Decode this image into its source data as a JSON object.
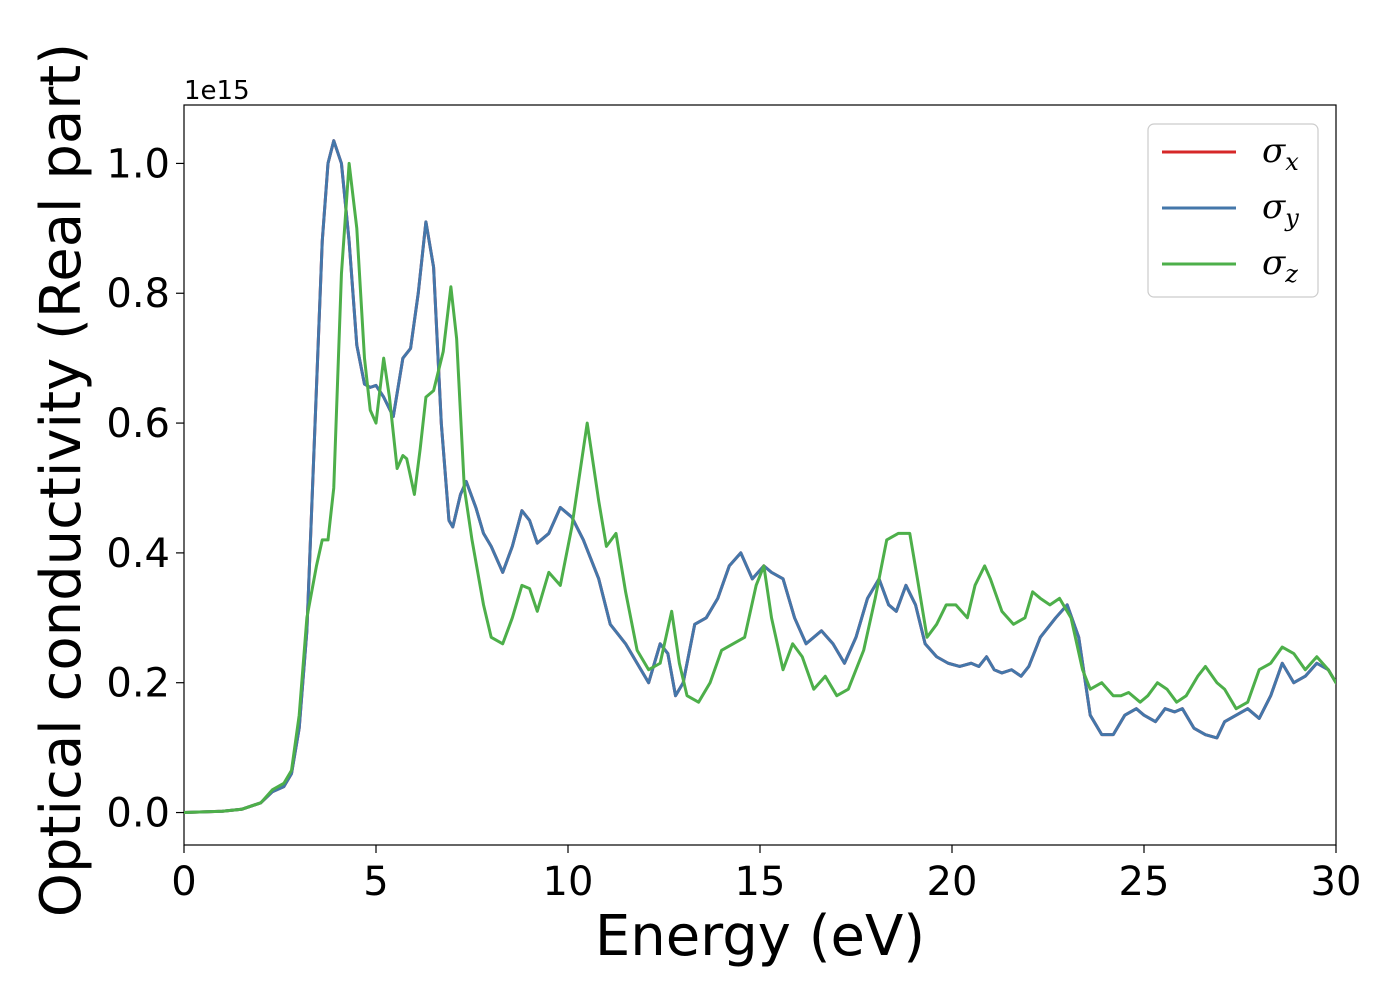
{
  "chart_data": {
    "type": "line",
    "xlabel": "Energy (eV)",
    "ylabel": "Optical conductivity (Real part)",
    "y_offset_label": "1e15",
    "xlim": [
      0,
      30
    ],
    "ylim": [
      -0.05,
      1.09
    ],
    "x_ticks": [
      0,
      5,
      10,
      15,
      20,
      25,
      30
    ],
    "y_ticks": [
      0.0,
      0.2,
      0.4,
      0.6,
      0.8,
      1.0
    ],
    "x_tick_labels": [
      "0",
      "5",
      "10",
      "15",
      "20",
      "25",
      "30"
    ],
    "y_tick_labels": [
      "0.0",
      "0.2",
      "0.4",
      "0.6",
      "0.8",
      "1.0"
    ],
    "grid": false,
    "legend_position": "top-right",
    "series": [
      {
        "name": "σx",
        "symbol": "σ",
        "subscript": "x",
        "color": "#d62728",
        "x": [
          0,
          1,
          1.5,
          2.0,
          2.3,
          2.6,
          2.8,
          3.0,
          3.2,
          3.4,
          3.6,
          3.75,
          3.9,
          4.1,
          4.3,
          4.5,
          4.7,
          4.85,
          5.0,
          5.2,
          5.45,
          5.7,
          5.9,
          6.1,
          6.3,
          6.5,
          6.7,
          6.9,
          7.0,
          7.2,
          7.35,
          7.6,
          7.8,
          8.0,
          8.3,
          8.55,
          8.8,
          9.0,
          9.2,
          9.5,
          9.8,
          10.1,
          10.4,
          10.8,
          11.1,
          11.5,
          11.8,
          12.1,
          12.4,
          12.6,
          12.8,
          13.0,
          13.3,
          13.6,
          13.9,
          14.2,
          14.5,
          14.8,
          15.1,
          15.3,
          15.6,
          15.9,
          16.2,
          16.6,
          16.9,
          17.2,
          17.5,
          17.8,
          18.1,
          18.35,
          18.55,
          18.8,
          19.05,
          19.3,
          19.6,
          19.9,
          20.2,
          20.5,
          20.7,
          20.9,
          21.1,
          21.3,
          21.55,
          21.8,
          22.0,
          22.3,
          22.7,
          23.0,
          23.3,
          23.6,
          23.9,
          24.2,
          24.5,
          24.8,
          25.0,
          25.3,
          25.55,
          25.8,
          26.0,
          26.3,
          26.6,
          26.9,
          27.1,
          27.4,
          27.7,
          28.0,
          28.3,
          28.6,
          28.9,
          29.2,
          29.5,
          29.8,
          30.0
        ],
        "values": [
          0,
          0.002,
          0.005,
          0.015,
          0.032,
          0.04,
          0.06,
          0.13,
          0.28,
          0.58,
          0.88,
          1.0,
          1.035,
          1.0,
          0.88,
          0.72,
          0.66,
          0.655,
          0.658,
          0.64,
          0.61,
          0.7,
          0.715,
          0.8,
          0.91,
          0.84,
          0.6,
          0.45,
          0.44,
          0.49,
          0.51,
          0.47,
          0.43,
          0.41,
          0.37,
          0.41,
          0.465,
          0.45,
          0.415,
          0.43,
          0.47,
          0.455,
          0.42,
          0.36,
          0.29,
          0.26,
          0.23,
          0.2,
          0.26,
          0.245,
          0.18,
          0.2,
          0.29,
          0.3,
          0.33,
          0.38,
          0.4,
          0.36,
          0.38,
          0.37,
          0.36,
          0.3,
          0.26,
          0.28,
          0.26,
          0.23,
          0.27,
          0.33,
          0.36,
          0.32,
          0.31,
          0.35,
          0.32,
          0.26,
          0.24,
          0.23,
          0.225,
          0.23,
          0.225,
          0.24,
          0.22,
          0.215,
          0.22,
          0.21,
          0.225,
          0.27,
          0.3,
          0.32,
          0.27,
          0.15,
          0.12,
          0.12,
          0.15,
          0.16,
          0.15,
          0.14,
          0.16,
          0.155,
          0.16,
          0.13,
          0.12,
          0.115,
          0.14,
          0.15,
          0.16,
          0.145,
          0.18,
          0.23,
          0.2,
          0.21,
          0.23,
          0.22,
          0.2
        ]
      },
      {
        "name": "σy",
        "symbol": "σ",
        "subscript": "y",
        "color": "#4477aa",
        "x": [
          0,
          1,
          1.5,
          2.0,
          2.3,
          2.6,
          2.8,
          3.0,
          3.2,
          3.4,
          3.6,
          3.75,
          3.9,
          4.1,
          4.3,
          4.5,
          4.7,
          4.85,
          5.0,
          5.2,
          5.45,
          5.7,
          5.9,
          6.1,
          6.3,
          6.5,
          6.7,
          6.9,
          7.0,
          7.2,
          7.35,
          7.6,
          7.8,
          8.0,
          8.3,
          8.55,
          8.8,
          9.0,
          9.2,
          9.5,
          9.8,
          10.1,
          10.4,
          10.8,
          11.1,
          11.5,
          11.8,
          12.1,
          12.4,
          12.6,
          12.8,
          13.0,
          13.3,
          13.6,
          13.9,
          14.2,
          14.5,
          14.8,
          15.1,
          15.3,
          15.6,
          15.9,
          16.2,
          16.6,
          16.9,
          17.2,
          17.5,
          17.8,
          18.1,
          18.35,
          18.55,
          18.8,
          19.05,
          19.3,
          19.6,
          19.9,
          20.2,
          20.5,
          20.7,
          20.9,
          21.1,
          21.3,
          21.55,
          21.8,
          22.0,
          22.3,
          22.7,
          23.0,
          23.3,
          23.6,
          23.9,
          24.2,
          24.5,
          24.8,
          25.0,
          25.3,
          25.55,
          25.8,
          26.0,
          26.3,
          26.6,
          26.9,
          27.1,
          27.4,
          27.7,
          28.0,
          28.3,
          28.6,
          28.9,
          29.2,
          29.5,
          29.8,
          30.0
        ],
        "values": [
          0,
          0.002,
          0.005,
          0.015,
          0.032,
          0.04,
          0.06,
          0.13,
          0.28,
          0.58,
          0.88,
          1.0,
          1.035,
          1.0,
          0.88,
          0.72,
          0.66,
          0.655,
          0.658,
          0.64,
          0.61,
          0.7,
          0.715,
          0.8,
          0.91,
          0.84,
          0.6,
          0.45,
          0.44,
          0.49,
          0.51,
          0.47,
          0.43,
          0.41,
          0.37,
          0.41,
          0.465,
          0.45,
          0.415,
          0.43,
          0.47,
          0.455,
          0.42,
          0.36,
          0.29,
          0.26,
          0.23,
          0.2,
          0.26,
          0.245,
          0.18,
          0.2,
          0.29,
          0.3,
          0.33,
          0.38,
          0.4,
          0.36,
          0.38,
          0.37,
          0.36,
          0.3,
          0.26,
          0.28,
          0.26,
          0.23,
          0.27,
          0.33,
          0.36,
          0.32,
          0.31,
          0.35,
          0.32,
          0.26,
          0.24,
          0.23,
          0.225,
          0.23,
          0.225,
          0.24,
          0.22,
          0.215,
          0.22,
          0.21,
          0.225,
          0.27,
          0.3,
          0.32,
          0.27,
          0.15,
          0.12,
          0.12,
          0.15,
          0.16,
          0.15,
          0.14,
          0.16,
          0.155,
          0.16,
          0.13,
          0.12,
          0.115,
          0.14,
          0.15,
          0.16,
          0.145,
          0.18,
          0.23,
          0.2,
          0.21,
          0.23,
          0.22,
          0.2
        ]
      },
      {
        "name": "σz",
        "symbol": "σ",
        "subscript": "z",
        "color": "#4daf4a",
        "x": [
          0,
          1,
          1.5,
          2.0,
          2.3,
          2.6,
          2.8,
          3.0,
          3.2,
          3.45,
          3.6,
          3.75,
          3.9,
          4.1,
          4.3,
          4.5,
          4.7,
          4.85,
          5.0,
          5.2,
          5.35,
          5.55,
          5.7,
          5.8,
          6.0,
          6.15,
          6.3,
          6.5,
          6.75,
          6.95,
          7.1,
          7.3,
          7.5,
          7.8,
          8.0,
          8.3,
          8.55,
          8.8,
          9.0,
          9.2,
          9.5,
          9.8,
          10.1,
          10.5,
          10.8,
          11.0,
          11.25,
          11.5,
          11.8,
          12.1,
          12.4,
          12.7,
          12.9,
          13.1,
          13.4,
          13.7,
          14.0,
          14.3,
          14.6,
          14.9,
          15.1,
          15.3,
          15.6,
          15.85,
          16.1,
          16.4,
          16.7,
          17.0,
          17.3,
          17.7,
          18.0,
          18.3,
          18.6,
          18.9,
          19.1,
          19.35,
          19.6,
          19.85,
          20.1,
          20.4,
          20.6,
          20.85,
          21.0,
          21.3,
          21.6,
          21.9,
          22.1,
          22.3,
          22.55,
          22.8,
          23.1,
          23.4,
          23.6,
          23.9,
          24.2,
          24.4,
          24.6,
          24.9,
          25.1,
          25.35,
          25.6,
          25.85,
          26.1,
          26.4,
          26.6,
          26.9,
          27.1,
          27.4,
          27.7,
          28.0,
          28.3,
          28.6,
          28.9,
          29.2,
          29.5,
          29.8,
          30.0
        ],
        "values": [
          0,
          0.002,
          0.005,
          0.015,
          0.035,
          0.045,
          0.065,
          0.15,
          0.3,
          0.38,
          0.42,
          0.42,
          0.5,
          0.83,
          1.0,
          0.9,
          0.7,
          0.62,
          0.6,
          0.7,
          0.64,
          0.53,
          0.55,
          0.545,
          0.49,
          0.56,
          0.64,
          0.65,
          0.71,
          0.81,
          0.73,
          0.5,
          0.42,
          0.32,
          0.27,
          0.26,
          0.3,
          0.35,
          0.345,
          0.31,
          0.37,
          0.35,
          0.44,
          0.6,
          0.48,
          0.41,
          0.43,
          0.34,
          0.25,
          0.22,
          0.23,
          0.31,
          0.23,
          0.18,
          0.17,
          0.2,
          0.25,
          0.26,
          0.27,
          0.35,
          0.38,
          0.3,
          0.22,
          0.26,
          0.24,
          0.19,
          0.21,
          0.18,
          0.19,
          0.25,
          0.33,
          0.42,
          0.43,
          0.43,
          0.36,
          0.27,
          0.29,
          0.32,
          0.32,
          0.3,
          0.35,
          0.38,
          0.36,
          0.31,
          0.29,
          0.3,
          0.34,
          0.33,
          0.32,
          0.33,
          0.3,
          0.22,
          0.19,
          0.2,
          0.18,
          0.18,
          0.185,
          0.17,
          0.18,
          0.2,
          0.19,
          0.17,
          0.18,
          0.21,
          0.225,
          0.2,
          0.19,
          0.16,
          0.17,
          0.22,
          0.23,
          0.255,
          0.245,
          0.22,
          0.24,
          0.22,
          0.2
        ]
      }
    ]
  }
}
